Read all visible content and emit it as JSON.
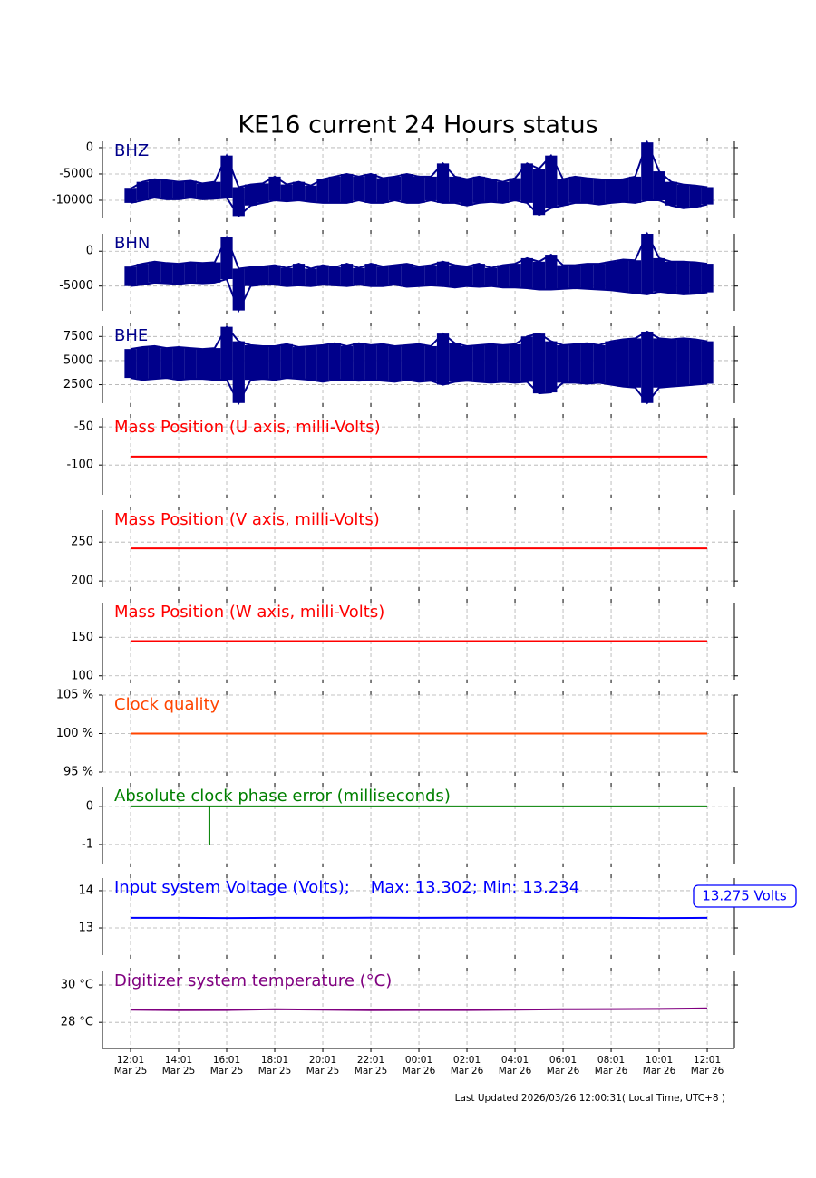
{
  "title": "KE16 current 24 Hours status",
  "footer": "Last Updated 2026/03/26 12:00:31( Local Time, UTC+8 )",
  "chart_data": [
    {
      "type": "band",
      "title": "BHZ",
      "xlim": [
        -1.17,
        25.13
      ],
      "ylim": [
        -13450,
        1200
      ],
      "yticks": [
        0,
        -5000,
        -10000
      ],
      "grid": true,
      "x": [
        0,
        0.5,
        1,
        1.5,
        2,
        2.5,
        3,
        3.5,
        4,
        4.5,
        5,
        5.5,
        6,
        6.5,
        7,
        7.5,
        8,
        8.5,
        9,
        9.5,
        10,
        10.5,
        11,
        11.5,
        12,
        12.5,
        13,
        13.5,
        14,
        14.5,
        15,
        15.5,
        16,
        16.5,
        17,
        17.5,
        18,
        18.5,
        19,
        19.5,
        20,
        20.5,
        21,
        21.5,
        22,
        22.5,
        23,
        23.5,
        24
      ],
      "series": [
        {
          "color": "#00008b",
          "max_values": [
            -7800,
            -6500,
            -6000,
            -6200,
            -6500,
            -6300,
            -6800,
            -6500,
            -1500,
            -7500,
            -7000,
            -6800,
            -5500,
            -7000,
            -6500,
            -7200,
            -6000,
            -5500,
            -5000,
            -5500,
            -5000,
            -5800,
            -5500,
            -5000,
            -5500,
            -5500,
            -3000,
            -5500,
            -6000,
            -5500,
            -6000,
            -6500,
            -5800,
            -3000,
            -4000,
            -1500,
            -6000,
            -5500,
            -5800,
            -6000,
            -6200,
            -6000,
            -5500,
            1000,
            -4500,
            -6500,
            -7000,
            -7200,
            -7500
          ],
          "min_values": [
            -10500,
            -10000,
            -9500,
            -9800,
            -9800,
            -9500,
            -9800,
            -9700,
            -9500,
            -13000,
            -11000,
            -10500,
            -10000,
            -10200,
            -10000,
            -10300,
            -10500,
            -10500,
            -10500,
            -10000,
            -10500,
            -10500,
            -10000,
            -10500,
            -10500,
            -10000,
            -10500,
            -10500,
            -11000,
            -10500,
            -10300,
            -10500,
            -10000,
            -10500,
            -12800,
            -11500,
            -11000,
            -10500,
            -10500,
            -10800,
            -10500,
            -10300,
            -10500,
            -10000,
            -10000,
            -11000,
            -11500,
            -11300,
            -10800
          ]
        }
      ]
    },
    {
      "type": "band",
      "title": "BHN",
      "xlim": [
        -1.17,
        25.13
      ],
      "ylim": [
        -8550,
        2500
      ],
      "yticks": [
        0,
        -5000
      ],
      "grid": true,
      "x": [
        0,
        0.5,
        1,
        1.5,
        2,
        2.5,
        3,
        3.5,
        4,
        4.5,
        5,
        5.5,
        6,
        6.5,
        7,
        7.5,
        8,
        8.5,
        9,
        9.5,
        10,
        10.5,
        11,
        11.5,
        12,
        12.5,
        13,
        13.5,
        14,
        14.5,
        15,
        15.5,
        16,
        16.5,
        17,
        17.5,
        18,
        18.5,
        19,
        19.5,
        20,
        20.5,
        21,
        21.5,
        22,
        22.5,
        23,
        23.5,
        24
      ],
      "series": [
        {
          "color": "#00008b",
          "max_values": [
            -2200,
            -1800,
            -1500,
            -1700,
            -1800,
            -1600,
            -1700,
            -1600,
            2000,
            -2500,
            -2300,
            -2200,
            -2000,
            -2400,
            -1800,
            -2500,
            -2000,
            -2300,
            -1800,
            -2400,
            -1800,
            -2200,
            -2000,
            -1800,
            -2200,
            -2000,
            -1500,
            -2000,
            -2200,
            -1800,
            -2400,
            -2000,
            -1800,
            -1000,
            -1500,
            -500,
            -2000,
            -2000,
            -1800,
            -1800,
            -1500,
            -1200,
            -1300,
            2500,
            -1000,
            -1500,
            -1500,
            -1600,
            -1800
          ],
          "min_values": [
            -5000,
            -4800,
            -4500,
            -4600,
            -4700,
            -4500,
            -4600,
            -4500,
            -4000,
            -8500,
            -5000,
            -4800,
            -4800,
            -5000,
            -4900,
            -5000,
            -4800,
            -4900,
            -5000,
            -4800,
            -5000,
            -5000,
            -4800,
            -5100,
            -5000,
            -4900,
            -5000,
            -5200,
            -5000,
            -5100,
            -5000,
            -5200,
            -5200,
            -5300,
            -5500,
            -5500,
            -5400,
            -5300,
            -5400,
            -5500,
            -5600,
            -5800,
            -6000,
            -6200,
            -5800,
            -6000,
            -6200,
            -6100,
            -5900
          ]
        }
      ]
    },
    {
      "type": "band",
      "title": "BHE",
      "xlim": [
        -1.17,
        25.13
      ],
      "ylim": [
        580,
        8560
      ],
      "yticks": [
        7500,
        5000,
        2500
      ],
      "grid": true,
      "x": [
        0,
        0.5,
        1,
        1.5,
        2,
        2.5,
        3,
        3.5,
        4,
        4.5,
        5,
        5.5,
        6,
        6.5,
        7,
        7.5,
        8,
        8.5,
        9,
        9.5,
        10,
        10.5,
        11,
        11.5,
        12,
        12.5,
        13,
        13.5,
        14,
        14.5,
        15,
        15.5,
        16,
        16.5,
        17,
        17.5,
        18,
        18.5,
        19,
        19.5,
        20,
        20.5,
        21,
        21.5,
        22,
        22.5,
        23,
        23.5,
        24
      ],
      "series": [
        {
          "color": "#00008b",
          "max_values": [
            6200,
            6400,
            6500,
            6300,
            6400,
            6300,
            6200,
            6300,
            8500,
            7000,
            6600,
            6500,
            6500,
            6700,
            6400,
            6500,
            6600,
            6800,
            6500,
            6800,
            6600,
            6700,
            6500,
            6600,
            6700,
            6500,
            7800,
            6800,
            6500,
            6600,
            6700,
            6600,
            6700,
            7500,
            7800,
            7000,
            6600,
            6700,
            6800,
            6600,
            7000,
            7200,
            7300,
            8000,
            7300,
            7200,
            7300,
            7200,
            7000
          ],
          "min_values": [
            3200,
            3000,
            3100,
            3200,
            3000,
            3100,
            3100,
            3000,
            3000,
            600,
            3000,
            3100,
            3000,
            3200,
            3100,
            3000,
            2800,
            3000,
            3000,
            2900,
            3000,
            2900,
            2800,
            3000,
            2800,
            2900,
            2500,
            2800,
            2900,
            2800,
            2700,
            2800,
            2700,
            2800,
            1600,
            1700,
            2700,
            2700,
            2600,
            2700,
            2500,
            2300,
            2200,
            600,
            2200,
            2300,
            2400,
            2500,
            2600
          ]
        }
      ]
    },
    {
      "type": "line",
      "title": "Mass Position (U axis, milli-Volts)",
      "xlim": [
        -1.17,
        25.13
      ],
      "ylim": [
        -139,
        -38
      ],
      "yticks": [
        -50,
        -100
      ],
      "grid": true,
      "x": [
        0,
        24
      ],
      "series": [
        {
          "color": "#ff0000",
          "values": [
            -89,
            -89
          ]
        }
      ]
    },
    {
      "type": "line",
      "title": "Mass Position (V axis, milli-Volts)",
      "xlim": [
        -1.17,
        25.13
      ],
      "ylim": [
        192,
        291
      ],
      "yticks": [
        250,
        200
      ],
      "grid": true,
      "x": [
        0,
        24
      ],
      "series": [
        {
          "color": "#ff0000",
          "values": [
            242,
            242
          ]
        }
      ]
    },
    {
      "type": "line",
      "title": "Mass Position (W axis, milli-Volts)",
      "xlim": [
        -1.17,
        25.13
      ],
      "ylim": [
        95,
        195
      ],
      "yticks": [
        150,
        100
      ],
      "grid": true,
      "x": [
        0,
        24
      ],
      "series": [
        {
          "color": "#ff0000",
          "values": [
            145,
            145
          ]
        }
      ]
    },
    {
      "type": "line",
      "title": "Clock quality",
      "xlim": [
        -1.17,
        25.13
      ],
      "ylim": [
        95,
        105
      ],
      "yticks": [
        {
          "value": 105,
          "label": "105 %"
        },
        {
          "value": 100,
          "label": "100 %"
        },
        {
          "value": 95,
          "label": "95 %"
        }
      ],
      "grid": true,
      "x": [
        0,
        24
      ],
      "series": [
        {
          "color": "#ff4500",
          "values": [
            100,
            100
          ]
        }
      ]
    },
    {
      "type": "line",
      "title": "Absolute clock phase error (milliseconds)",
      "xlim": [
        -1.17,
        25.13
      ],
      "ylim": [
        -1.5,
        0.52
      ],
      "yticks": [
        0,
        -1
      ],
      "grid": true,
      "x": [
        0,
        3.28,
        3.28,
        3.28,
        24
      ],
      "series": [
        {
          "color": "#008000",
          "values": [
            0,
            0,
            -1,
            0,
            0
          ]
        }
      ]
    },
    {
      "type": "line",
      "title": "Input system Voltage (Volts);    Max: 13.302; Min: 13.234",
      "annotation": "13.275 Volts",
      "xlim": [
        -1.17,
        25.13
      ],
      "ylim": [
        12.27,
        14.34
      ],
      "yticks": [
        14,
        13
      ],
      "grid": true,
      "x": [
        0,
        2,
        4,
        6,
        8,
        10,
        12,
        14,
        16,
        18,
        20,
        22,
        24
      ],
      "series": [
        {
          "color": "#0000ff",
          "values": [
            13.27,
            13.27,
            13.265,
            13.27,
            13.27,
            13.275,
            13.27,
            13.275,
            13.275,
            13.27,
            13.27,
            13.265,
            13.27
          ]
        }
      ]
    },
    {
      "type": "line",
      "title": "Digitizer system temperature (°C)",
      "xlim": [
        -1.17,
        25.13
      ],
      "ylim": [
        26.6,
        30.73
      ],
      "yticks": [
        {
          "value": 30,
          "label": "30 °C"
        },
        {
          "value": 28,
          "label": "28 °C"
        }
      ],
      "grid": true,
      "x": [
        0,
        2,
        4,
        6,
        8,
        10,
        12,
        14,
        16,
        18,
        20,
        22,
        24
      ],
      "series": [
        {
          "color": "#800080",
          "values": [
            28.68,
            28.65,
            28.66,
            28.7,
            28.68,
            28.65,
            28.66,
            28.66,
            28.68,
            28.7,
            28.71,
            28.72,
            28.75
          ]
        }
      ],
      "xticks": [
        {
          "value": 0,
          "label": [
            "12:01",
            "Mar 25"
          ]
        },
        {
          "value": 2,
          "label": [
            "14:01",
            "Mar 25"
          ]
        },
        {
          "value": 4,
          "label": [
            "16:01",
            "Mar 25"
          ]
        },
        {
          "value": 6,
          "label": [
            "18:01",
            "Mar 25"
          ]
        },
        {
          "value": 8,
          "label": [
            "20:01",
            "Mar 25"
          ]
        },
        {
          "value": 10,
          "label": [
            "22:01",
            "Mar 25"
          ]
        },
        {
          "value": 12,
          "label": [
            "00:01",
            "Mar 26"
          ]
        },
        {
          "value": 14,
          "label": [
            "02:01",
            "Mar 26"
          ]
        },
        {
          "value": 16,
          "label": [
            "04:01",
            "Mar 26"
          ]
        },
        {
          "value": 18,
          "label": [
            "06:01",
            "Mar 26"
          ]
        },
        {
          "value": 20,
          "label": [
            "08:01",
            "Mar 26"
          ]
        },
        {
          "value": 22,
          "label": [
            "10:01",
            "Mar 26"
          ]
        },
        {
          "value": 24,
          "label": [
            "12:01",
            "Mar 26"
          ]
        }
      ]
    }
  ]
}
